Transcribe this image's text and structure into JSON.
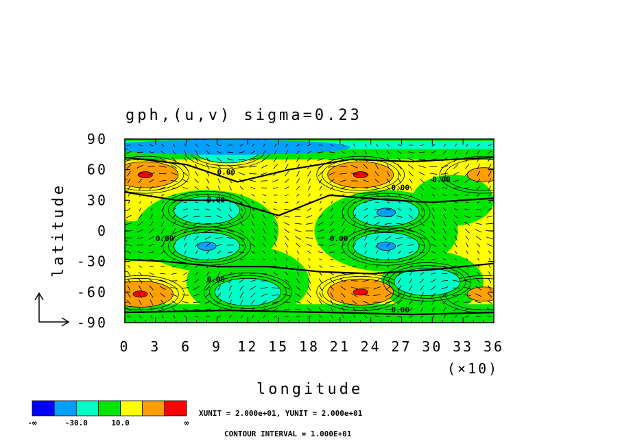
{
  "chart_data": {
    "type": "heatmap",
    "title": "gph,(u,v) sigma=0.23",
    "xlabel": "longitude",
    "ylabel": "latitude",
    "x_ticks": [
      "0",
      "3",
      "6",
      "9",
      "12",
      "15",
      "18",
      "21",
      "24",
      "27",
      "30",
      "33",
      "36"
    ],
    "x_multiplier": "(×10)",
    "y_ticks": [
      "90",
      "60",
      "30",
      "0",
      "-30",
      "-60",
      "-90"
    ],
    "xlim": [
      0,
      360
    ],
    "ylim": [
      -90,
      90
    ],
    "contour_labels": [
      "0.00",
      "0.00",
      "0.00",
      "0.00",
      "0.00",
      "0.00",
      "0.00",
      "0.00"
    ],
    "colorbar": {
      "colors": [
        "#0000ff",
        "#00a0ff",
        "#00ffc8",
        "#00e600",
        "#ffff00",
        "#ffa000",
        "#ff0000"
      ],
      "labels": [
        "-∞",
        "-30.0",
        "10.0",
        "∞"
      ]
    },
    "unit_note": "XUNIT = 2.000e+01, YUNIT = 2.000e+01",
    "contour_note": "CONTOUR INTERVAL = 1.000E+01",
    "features": [
      {
        "type": "high",
        "lon": 20,
        "lat": 55,
        "level": "#ff0000"
      },
      {
        "type": "high",
        "lon": 230,
        "lat": 55,
        "level": "#ff0000"
      },
      {
        "type": "high",
        "lon": 350,
        "lat": 55,
        "level": "#ffa000"
      },
      {
        "type": "high",
        "lon": 15,
        "lat": -62,
        "level": "#ff0000"
      },
      {
        "type": "high",
        "lon": 230,
        "lat": -60,
        "level": "#ff0000"
      },
      {
        "type": "high",
        "lon": 350,
        "lat": -62,
        "level": "#ffa000"
      },
      {
        "type": "low",
        "lon": 100,
        "lat": 80,
        "level": "#00a0ff"
      },
      {
        "type": "low",
        "lon": 80,
        "lat": 20,
        "level": "#00ffc8"
      },
      {
        "type": "low",
        "lon": 80,
        "lat": -15,
        "level": "#00a0ff"
      },
      {
        "type": "low",
        "lon": 255,
        "lat": 18,
        "level": "#00a0ff"
      },
      {
        "type": "low",
        "lon": 255,
        "lat": -15,
        "level": "#00a0ff"
      },
      {
        "type": "low",
        "lon": 120,
        "lat": -60,
        "level": "#00ffc8"
      },
      {
        "type": "low",
        "lon": 295,
        "lat": -50,
        "level": "#00ffc8"
      }
    ]
  }
}
